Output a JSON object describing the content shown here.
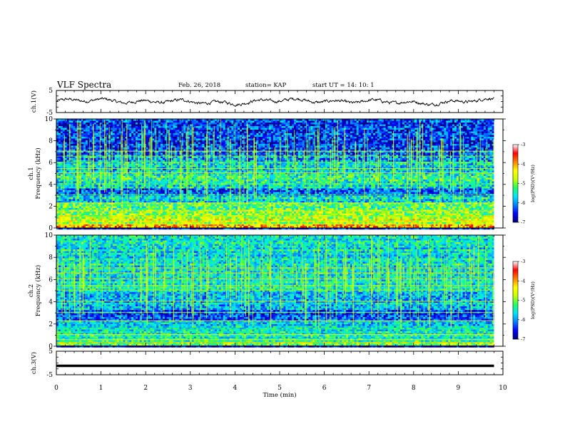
{
  "header": {
    "title": "VLF Spectra",
    "date": "Feb. 26, 2018",
    "station": "station= KAP",
    "start": "start  UT =   14: 10: 1"
  },
  "chart_data": [
    {
      "type": "line",
      "id": "ch1-waveform",
      "ylabel": "ch.1(V)",
      "ylim": [
        -5,
        5
      ],
      "yticks": [
        "5",
        "-5"
      ],
      "xlim": [
        0,
        10
      ],
      "x_extent_min": 9.8,
      "description_values": "noisy waveform oscillating roughly between -2 and +2 V"
    },
    {
      "type": "heatmap",
      "id": "ch1-spectrogram",
      "ylabel": "ch.1\nFrequency (kHz)",
      "ylim": [
        0,
        10
      ],
      "yticks": [
        "0",
        "2",
        "4",
        "6",
        "8",
        "10"
      ],
      "xlim": [
        0,
        10
      ],
      "x_extent_min": 9.8,
      "colorbar": {
        "label": "log(PSD)(V²/Hz)",
        "range": [
          -7,
          -3
        ],
        "ticks": [
          "-3",
          "-4",
          "-5",
          "-6",
          "-7"
        ]
      },
      "bands_khz_logpsd": [
        [
          0.0,
          0.3,
          -4.2
        ],
        [
          0.3,
          1.0,
          -4.7
        ],
        [
          1.0,
          1.6,
          -4.9
        ],
        [
          1.6,
          2.3,
          -5.1
        ],
        [
          2.3,
          2.9,
          -5.6
        ],
        [
          2.9,
          3.6,
          -6.3
        ],
        [
          3.6,
          4.0,
          -5.6
        ],
        [
          4.0,
          5.0,
          -5.5
        ],
        [
          5.0,
          6.0,
          -5.7
        ],
        [
          6.0,
          6.6,
          -6.0
        ],
        [
          6.6,
          7.0,
          -6.2
        ],
        [
          7.0,
          10.0,
          -6.4
        ]
      ]
    },
    {
      "type": "heatmap",
      "id": "ch2-spectrogram",
      "ylabel": "ch.2\nFrequency (kHz)",
      "ylim": [
        0,
        10
      ],
      "yticks": [
        "0",
        "2",
        "4",
        "6",
        "8",
        "10"
      ],
      "xlim": [
        0,
        10
      ],
      "x_extent_min": 9.8,
      "colorbar": {
        "label": "log(PSD)(V²/Hz)",
        "range": [
          -7,
          -3
        ],
        "ticks": [
          "-3",
          "-4",
          "-5",
          "-6",
          "-7"
        ]
      },
      "bands_khz_logpsd": [
        [
          0.0,
          0.4,
          -5.0
        ],
        [
          0.4,
          1.6,
          -5.5
        ],
        [
          1.6,
          2.3,
          -5.7
        ],
        [
          2.3,
          3.3,
          -6.3
        ],
        [
          3.3,
          4.0,
          -5.8
        ],
        [
          4.0,
          5.0,
          -5.8
        ],
        [
          5.0,
          6.0,
          -5.5
        ],
        [
          6.0,
          10.0,
          -5.6
        ]
      ]
    },
    {
      "type": "line",
      "id": "ch3-waveform",
      "ylabel": "ch.3(V)",
      "ylim": [
        -5,
        5
      ],
      "yticks": [
        "5",
        "-5"
      ],
      "xlim": [
        0,
        10
      ],
      "x": [
        0,
        9.8
      ],
      "values": [
        -1.2,
        -1.2
      ],
      "xlabel": "Time  (min)",
      "xticks": [
        "0",
        "1",
        "2",
        "3",
        "4",
        "5",
        "6",
        "7",
        "8",
        "9",
        "10"
      ]
    }
  ],
  "colors": {
    "scale": [
      "#00007a",
      "#0000ff",
      "#0080ff",
      "#00e5ff",
      "#20ff60",
      "#c8ff00",
      "#ffff00",
      "#ff8000",
      "#ff0000",
      "#ffffff"
    ]
  }
}
